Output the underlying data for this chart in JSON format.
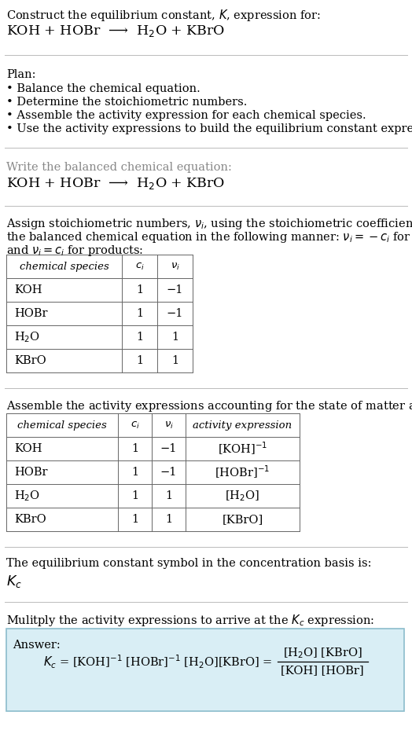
{
  "title_line1": "Construct the equilibrium constant, $K$, expression for:",
  "title_line2": "KOH + HOBr  ⟶  H$_2$O + KBrO",
  "plan_header": "Plan:",
  "plan_items": [
    "• Balance the chemical equation.",
    "• Determine the stoichiometric numbers.",
    "• Assemble the activity expression for each chemical species.",
    "• Use the activity expressions to build the equilibrium constant expression."
  ],
  "balanced_header": "Write the balanced chemical equation:",
  "balanced_eq": "KOH + HOBr  ⟶  H$_2$O + KBrO",
  "stoich_header_1": "Assign stoichiometric numbers, $\\nu_i$, using the stoichiometric coefficients, $c_i$, from",
  "stoich_header_2": "the balanced chemical equation in the following manner: $\\nu_i = -c_i$ for reactants",
  "stoich_header_3": "and $\\nu_i = c_i$ for products:",
  "table1_headers": [
    "chemical species",
    "$c_i$",
    "$\\nu_i$"
  ],
  "table1_rows": [
    [
      "KOH",
      "1",
      "−1"
    ],
    [
      "HOBr",
      "1",
      "−1"
    ],
    [
      "H$_2$O",
      "1",
      "1"
    ],
    [
      "KBrO",
      "1",
      "1"
    ]
  ],
  "activity_header": "Assemble the activity expressions accounting for the state of matter and $\\nu_i$:",
  "table2_headers": [
    "chemical species",
    "$c_i$",
    "$\\nu_i$",
    "activity expression"
  ],
  "table2_rows": [
    [
      "KOH",
      "1",
      "−1",
      "[KOH]$^{-1}$"
    ],
    [
      "HOBr",
      "1",
      "−1",
      "[HOBr]$^{-1}$"
    ],
    [
      "H$_2$O",
      "1",
      "1",
      "[H$_2$O]"
    ],
    [
      "KBrO",
      "1",
      "1",
      "[KBrO]"
    ]
  ],
  "kc_basis_text": "The equilibrium constant symbol in the concentration basis is:",
  "kc_symbol": "$K_c$",
  "multiply_header": "Mulitply the activity expressions to arrive at the $K_c$ expression:",
  "answer_label": "Answer:",
  "answer_box_color": "#d9eef5",
  "answer_box_border": "#8bbccc",
  "bg_color": "#ffffff",
  "text_color": "#000000",
  "sep_color": "#bbbbbb",
  "table_color": "#666666",
  "font_size": 10.5,
  "small_font": 9.5,
  "title_font": 12.5
}
